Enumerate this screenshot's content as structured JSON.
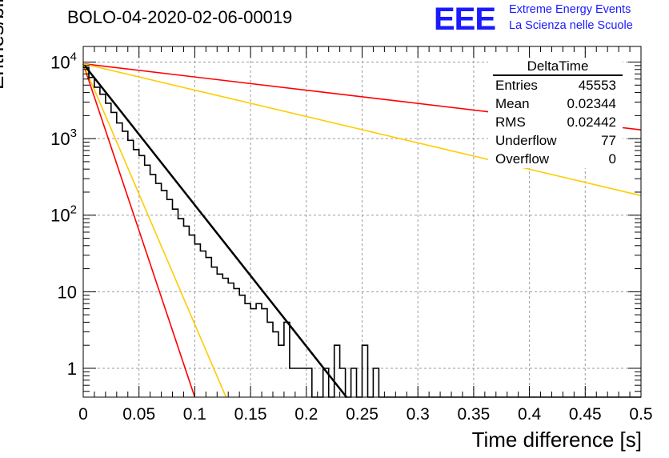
{
  "header": {
    "run_title": "BOLO-04-2020-02-06-00019",
    "logo": "EEE",
    "logo_line1": "Extreme Energy Events",
    "logo_line2": "La Scienza nelle Scuole"
  },
  "stats": {
    "title": "DeltaTime",
    "rows": [
      {
        "label": "Entries",
        "value": "45553"
      },
      {
        "label": "Mean",
        "value": "0.02344"
      },
      {
        "label": "RMS",
        "value": "0.02442"
      },
      {
        "label": "Underflow",
        "value": "77"
      },
      {
        "label": "Overflow",
        "value": "0"
      }
    ]
  },
  "chart_data": {
    "type": "line",
    "title": "BOLO-04-2020-02-06-00019",
    "xlabel": "Time difference [s]",
    "ylabel": "Entries/bin",
    "xlim": [
      0,
      0.5
    ],
    "ylim": [
      0.42,
      16000
    ],
    "yscale": "log",
    "grid": true,
    "x_ticks": [
      "0",
      "0.05",
      "0.1",
      "0.15",
      "0.2",
      "0.25",
      "0.3",
      "0.35",
      "0.4",
      "0.45",
      "0.5"
    ],
    "y_ticks": [
      {
        "value": 1,
        "label": "1"
      },
      {
        "value": 10,
        "label": "10"
      },
      {
        "value": 100,
        "label": "10^2"
      },
      {
        "value": 1000,
        "label": "10^3"
      },
      {
        "value": 10000,
        "label": "10^4"
      }
    ],
    "histogram": {
      "color": "#000000",
      "bin_width": 0.005,
      "bin_starts": [
        0.0,
        0.005,
        0.01,
        0.015,
        0.02,
        0.025,
        0.03,
        0.035,
        0.04,
        0.045,
        0.05,
        0.055,
        0.06,
        0.065,
        0.07,
        0.075,
        0.08,
        0.085,
        0.09,
        0.095,
        0.1,
        0.105,
        0.11,
        0.115,
        0.12,
        0.125,
        0.13,
        0.135,
        0.14,
        0.145,
        0.15,
        0.155,
        0.16,
        0.165,
        0.17,
        0.175,
        0.18,
        0.185,
        0.19,
        0.195,
        0.2,
        0.205,
        0.21,
        0.215,
        0.22,
        0.225,
        0.23,
        0.235,
        0.24,
        0.245,
        0.25,
        0.255,
        0.26,
        0.265,
        0.27,
        0.275,
        0.28,
        0.285,
        0.29,
        0.295,
        0.3,
        0.305,
        0.31,
        0.315,
        0.32,
        0.325,
        0.33,
        0.335,
        0.34,
        0.345,
        0.35,
        0.355,
        0.36,
        0.365,
        0.37,
        0.375,
        0.38,
        0.385,
        0.39,
        0.395,
        0.4,
        0.405,
        0.41,
        0.415,
        0.42,
        0.425,
        0.43,
        0.435,
        0.44,
        0.445,
        0.45,
        0.455,
        0.46,
        0.465,
        0.47,
        0.475,
        0.48,
        0.485,
        0.49,
        0.495
      ],
      "counts": [
        8500,
        6300,
        4700,
        3800,
        2900,
        2200,
        1600,
        1250,
        950,
        720,
        600,
        450,
        340,
        260,
        210,
        160,
        120,
        90,
        72,
        55,
        42,
        34,
        28,
        21,
        17,
        15,
        13,
        11,
        9,
        7,
        6,
        7,
        6,
        4,
        3,
        2,
        4,
        1,
        1,
        1,
        1,
        0,
        0,
        1,
        0,
        2,
        1,
        0,
        1,
        0,
        2,
        0,
        1,
        0,
        0,
        0,
        0,
        0,
        0,
        0,
        0,
        0,
        0,
        0,
        0,
        0,
        0,
        0,
        0,
        0,
        0,
        0,
        0,
        0,
        0,
        0,
        0,
        0,
        0,
        0,
        0,
        0,
        0,
        0,
        0,
        0,
        0,
        0,
        0,
        0,
        0,
        0,
        0,
        0,
        0,
        0,
        0,
        0,
        0,
        0
      ]
    },
    "series": [
      {
        "color": "#000000",
        "x": [
          0,
          0.236
        ],
        "y": [
          9500,
          0.42
        ],
        "width": 2.5
      },
      {
        "color": "#ff0000",
        "x": [
          0,
          0.5
        ],
        "y": [
          9500,
          1300
        ],
        "width": 1.6
      },
      {
        "color": "#ffcc00",
        "x": [
          0,
          0.5
        ],
        "y": [
          9500,
          180
        ],
        "width": 1.6
      },
      {
        "color": "#ff0000",
        "x": [
          0,
          0.1
        ],
        "y": [
          9500,
          0.42
        ],
        "width": 1.6
      },
      {
        "color": "#ffcc00",
        "x": [
          0,
          0.128
        ],
        "y": [
          9500,
          0.42
        ],
        "width": 1.6
      }
    ]
  }
}
